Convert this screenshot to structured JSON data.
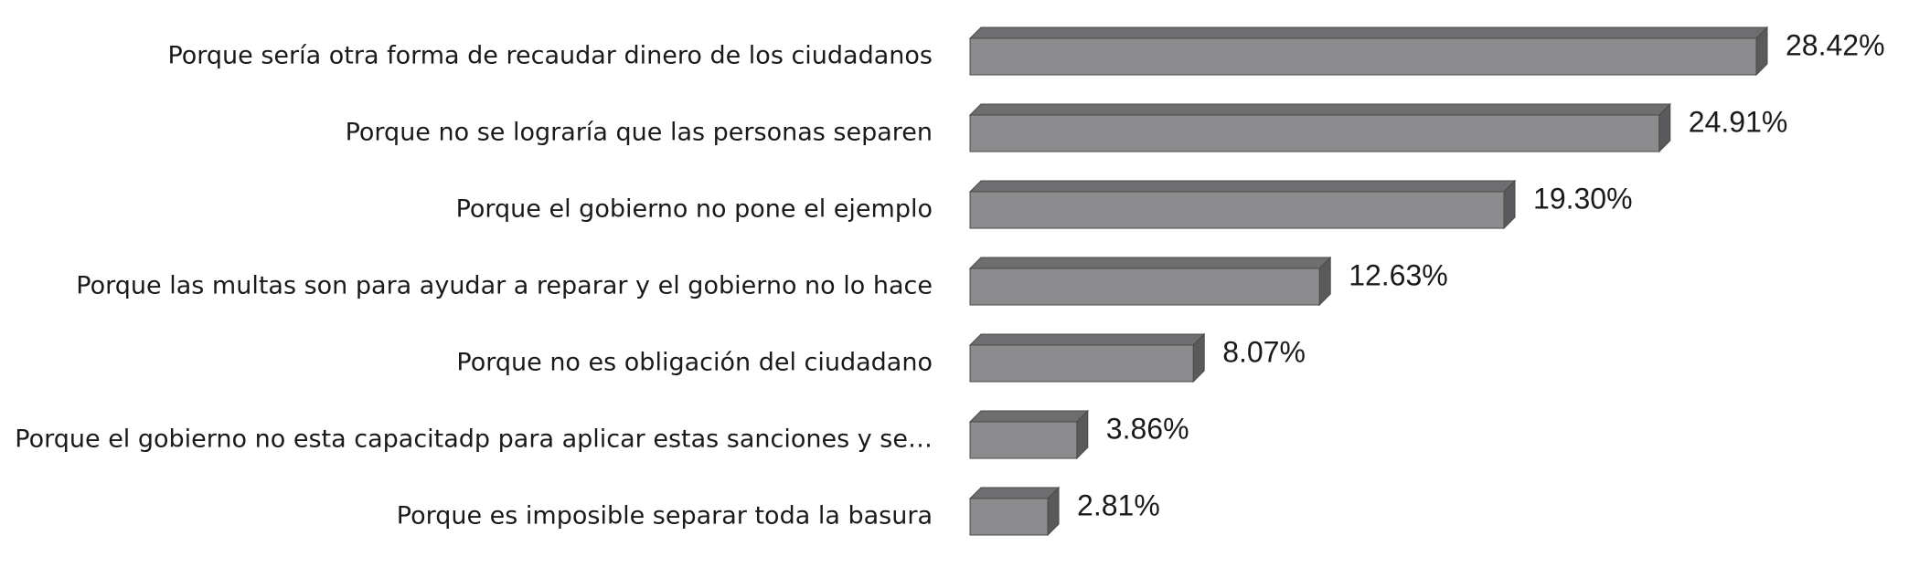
{
  "chart_data": {
    "type": "bar",
    "orientation": "horizontal",
    "style": "3d",
    "categories": [
      "Porque sería otra forma de recaudar dinero de los ciudadanos",
      "Porque no se lograría que las personas separen",
      "Porque el gobierno no pone el ejemplo",
      "Porque las multas son para ayudar a reparar y el gobierno no lo hace",
      "Porque no es obligación del ciudadano",
      "Porque el gobierno no esta capacitadp para aplicar estas sanciones y se…",
      "Porque es imposible separar toda la basura"
    ],
    "values": [
      28.42,
      24.91,
      19.3,
      12.63,
      8.07,
      3.86,
      2.81
    ],
    "value_labels": [
      "28.42%",
      "24.91%",
      "19.30%",
      "12.63%",
      "8.07%",
      "3.86%",
      "2.81%"
    ],
    "unit": "%",
    "xlim": [
      0,
      28.42
    ],
    "grid": false,
    "legend": "none",
    "colors": {
      "bar_front": "#8c8c8e",
      "bar_top": "#6e6e70",
      "bar_side": "#5a5a5c",
      "bar_edge": "#4a4a4a",
      "text": "#1a1a1a"
    }
  }
}
